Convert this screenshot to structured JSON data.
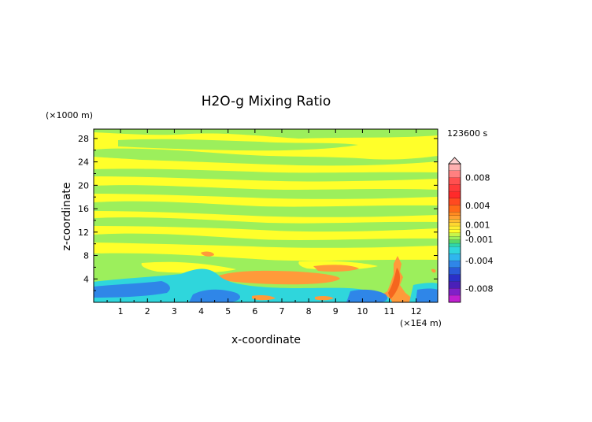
{
  "chart_data": {
    "type": "heatmap",
    "title": "H2O-g Mixing Ratio",
    "xlabel": "x-coordinate",
    "ylabel": "z-coordinate",
    "x_unit": "(×1E4 m)",
    "y_unit": "(×1000 m)",
    "time_label": "123600 s",
    "xlim": [
      0,
      12.8
    ],
    "ylim": [
      0,
      29.6
    ],
    "x_ticks": [
      "1",
      "2",
      "3",
      "4",
      "5",
      "6",
      "7",
      "8",
      "9",
      "10",
      "11",
      "12"
    ],
    "y_ticks": [
      "4",
      "8",
      "12",
      "16",
      "20",
      "24",
      "28"
    ],
    "colorbar": {
      "range": [
        -0.01,
        0.01
      ],
      "tick_labels": [
        {
          "label": "0.008",
          "value": 0.008
        },
        {
          "label": "0.004",
          "value": 0.004
        },
        {
          "label": "0.001",
          "value": 0.0012
        },
        {
          "label": "0",
          "value": 0.0
        },
        {
          "label": "-0.001",
          "value": -0.0009
        },
        {
          "label": "-0.004",
          "value": -0.004
        },
        {
          "label": "-0.008",
          "value": -0.008
        }
      ]
    },
    "colors": {
      "yellow": "#ffff2a",
      "light_green": "#9cef5c",
      "green": "#55d96b",
      "orange": "#ff9a3a",
      "dark_orange": "#f5661e",
      "cyan": "#2fd6dc",
      "blue": "#2f86e8"
    },
    "regions": [
      {
        "name": "background",
        "level": "0",
        "color": "#ffff2a"
      },
      {
        "name": "green-band",
        "level": "-0.001",
        "color": "#9cef5c"
      },
      {
        "name": "orange-plume",
        "level": "0.004",
        "color": "#ff9a3a"
      },
      {
        "name": "cyan-layer",
        "level": "-0.002",
        "color": "#2fd6dc"
      },
      {
        "name": "blue-layer",
        "level": "-0.004",
        "color": "#2f86e8"
      }
    ]
  }
}
